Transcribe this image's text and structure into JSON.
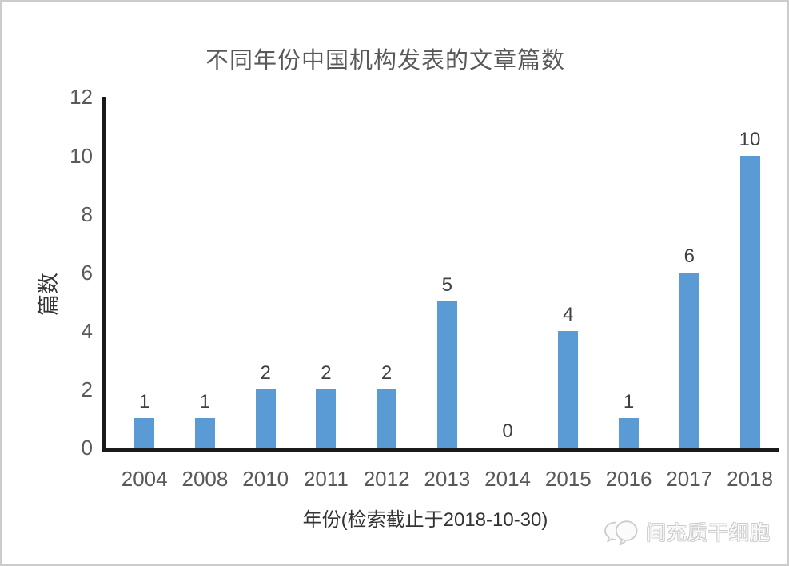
{
  "chart_data": {
    "type": "bar",
    "title": "不同年份中国机构发表的文章篇数",
    "categories": [
      "2004",
      "2008",
      "2010",
      "2011",
      "2012",
      "2013",
      "2014",
      "2015",
      "2016",
      "2017",
      "2018"
    ],
    "values": [
      1,
      1,
      2,
      2,
      2,
      5,
      0,
      4,
      1,
      6,
      10
    ],
    "xlabel": "年份(检索截止于2018-10-30)",
    "ylabel": "篇数",
    "ylim": [
      0,
      12
    ],
    "yticks": [
      0,
      2,
      4,
      6,
      8,
      10,
      12
    ],
    "grid": false,
    "legend_position": "none",
    "data_labels": true,
    "bar_color": "#5B9BD5",
    "axis_color": "#1a1a1a"
  },
  "watermark": {
    "icon": "speech-bubbles-icon",
    "text": "间充质干细胞"
  },
  "colors": {
    "bar": "#5B9BD5",
    "axis": "#1a1a1a",
    "tick_label": "#595959",
    "title": "#595959",
    "data_label": "#404040",
    "frame_border": "#cccccc",
    "watermark": "#cdcdcd"
  }
}
